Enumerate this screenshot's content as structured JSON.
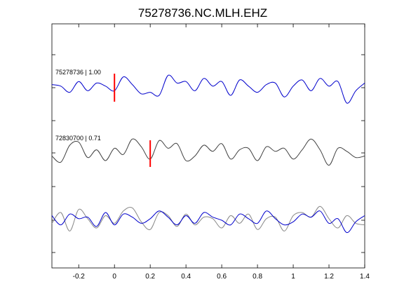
{
  "chart_data": {
    "type": "line",
    "title": "75278736.NC.MLH.EHZ",
    "xlabel": "",
    "ylabel": "",
    "xlim": [
      -0.35,
      1.4
    ],
    "x_ticks": [
      -0.2,
      0,
      0.2,
      0.4,
      0.6,
      0.8,
      1,
      1.2,
      1.4
    ],
    "x_tick_labels": [
      "-0.2",
      "0",
      "0.2",
      "0.4",
      "0.6",
      "0.8",
      "1",
      "1.2",
      "1.4"
    ],
    "grid": false,
    "panels": [
      {
        "label": "75278736 | 1.00",
        "pick_time": 0.0,
        "color": "#0000cc",
        "x": [
          -0.35,
          -0.3,
          -0.25,
          -0.2,
          -0.15,
          -0.1,
          -0.05,
          0.0,
          0.05,
          0.1,
          0.15,
          0.2,
          0.25,
          0.3,
          0.35,
          0.4,
          0.45,
          0.5,
          0.55,
          0.6,
          0.65,
          0.7,
          0.75,
          0.8,
          0.85,
          0.9,
          0.95,
          1.0,
          1.05,
          1.1,
          1.15,
          1.2,
          1.25,
          1.3,
          1.35,
          1.4
        ],
        "y": [
          0.2,
          0.1,
          -0.3,
          0.4,
          -0.2,
          0.3,
          0.1,
          -0.2,
          0.7,
          0.2,
          -0.4,
          -0.3,
          -0.5,
          0.8,
          0.3,
          0.4,
          -0.2,
          0.6,
          0.1,
          0.4,
          -0.5,
          0.5,
          0.1,
          -0.3,
          0.2,
          0.3,
          -0.6,
          0.1,
          0.5,
          -0.2,
          0.6,
          0.1,
          0.4,
          -1.0,
          -0.2,
          0.3
        ]
      },
      {
        "label": "72830700 | 0.71",
        "pick_time": 0.2,
        "color": "#404040",
        "x": [
          -0.35,
          -0.3,
          -0.25,
          -0.2,
          -0.15,
          -0.1,
          -0.05,
          0.0,
          0.05,
          0.1,
          0.15,
          0.2,
          0.25,
          0.3,
          0.35,
          0.4,
          0.45,
          0.5,
          0.55,
          0.6,
          0.65,
          0.7,
          0.75,
          0.8,
          0.85,
          0.9,
          0.95,
          1.0,
          1.05,
          1.1,
          1.15,
          1.2,
          1.25,
          1.3,
          1.35,
          1.4
        ],
        "y": [
          -0.2,
          -0.6,
          0.5,
          0.7,
          -0.3,
          0.2,
          -0.5,
          0.3,
          -0.1,
          0.9,
          0.4,
          -0.4,
          0.8,
          0.3,
          0.6,
          -0.5,
          -0.2,
          0.5,
          0.1,
          0.6,
          -0.4,
          0.2,
          0.3,
          -0.5,
          0.4,
          0.1,
          0.3,
          -0.4,
          0.2,
          0.9,
          0.2,
          -0.8,
          0.3,
          0.1,
          -0.3,
          -0.2
        ]
      },
      {
        "label": "",
        "pick_time": null,
        "color": "#888888",
        "overlay_color": "#0000cc",
        "x": [
          -0.35,
          -0.3,
          -0.25,
          -0.2,
          -0.15,
          -0.1,
          -0.05,
          0.0,
          0.05,
          0.1,
          0.15,
          0.2,
          0.25,
          0.3,
          0.35,
          0.4,
          0.45,
          0.5,
          0.55,
          0.6,
          0.65,
          0.7,
          0.75,
          0.8,
          0.85,
          0.9,
          0.95,
          1.0,
          1.05,
          1.1,
          1.15,
          1.2,
          1.25,
          1.3,
          1.35,
          1.4
        ],
        "y_gray": [
          -0.2,
          0.5,
          -0.7,
          0.7,
          0.1,
          -0.5,
          0.3,
          -0.2,
          0.6,
          0.8,
          -0.1,
          -0.6,
          0.5,
          0.3,
          -0.4,
          0.4,
          -0.3,
          0.2,
          0.1,
          -0.5,
          0.3,
          -0.2,
          0.4,
          -0.6,
          0.1,
          0.2,
          -0.7,
          0.3,
          0.5,
          0.2,
          0.9,
          0.1,
          -0.5,
          0.3,
          -0.2,
          -0.3
        ],
        "y_blue": [
          0.3,
          -0.3,
          0.4,
          0.1,
          0.2,
          -0.4,
          0.5,
          -0.3,
          0.4,
          0.2,
          -0.2,
          0.1,
          0.6,
          0.2,
          -0.3,
          0.3,
          -0.2,
          0.5,
          0.2,
          0.0,
          -0.3,
          0.4,
          0.1,
          -0.2,
          0.6,
          0.1,
          -0.3,
          -0.1,
          0.4,
          0.2,
          0.6,
          -0.2,
          0.1,
          -0.8,
          -0.1,
          0.3
        ]
      }
    ]
  }
}
